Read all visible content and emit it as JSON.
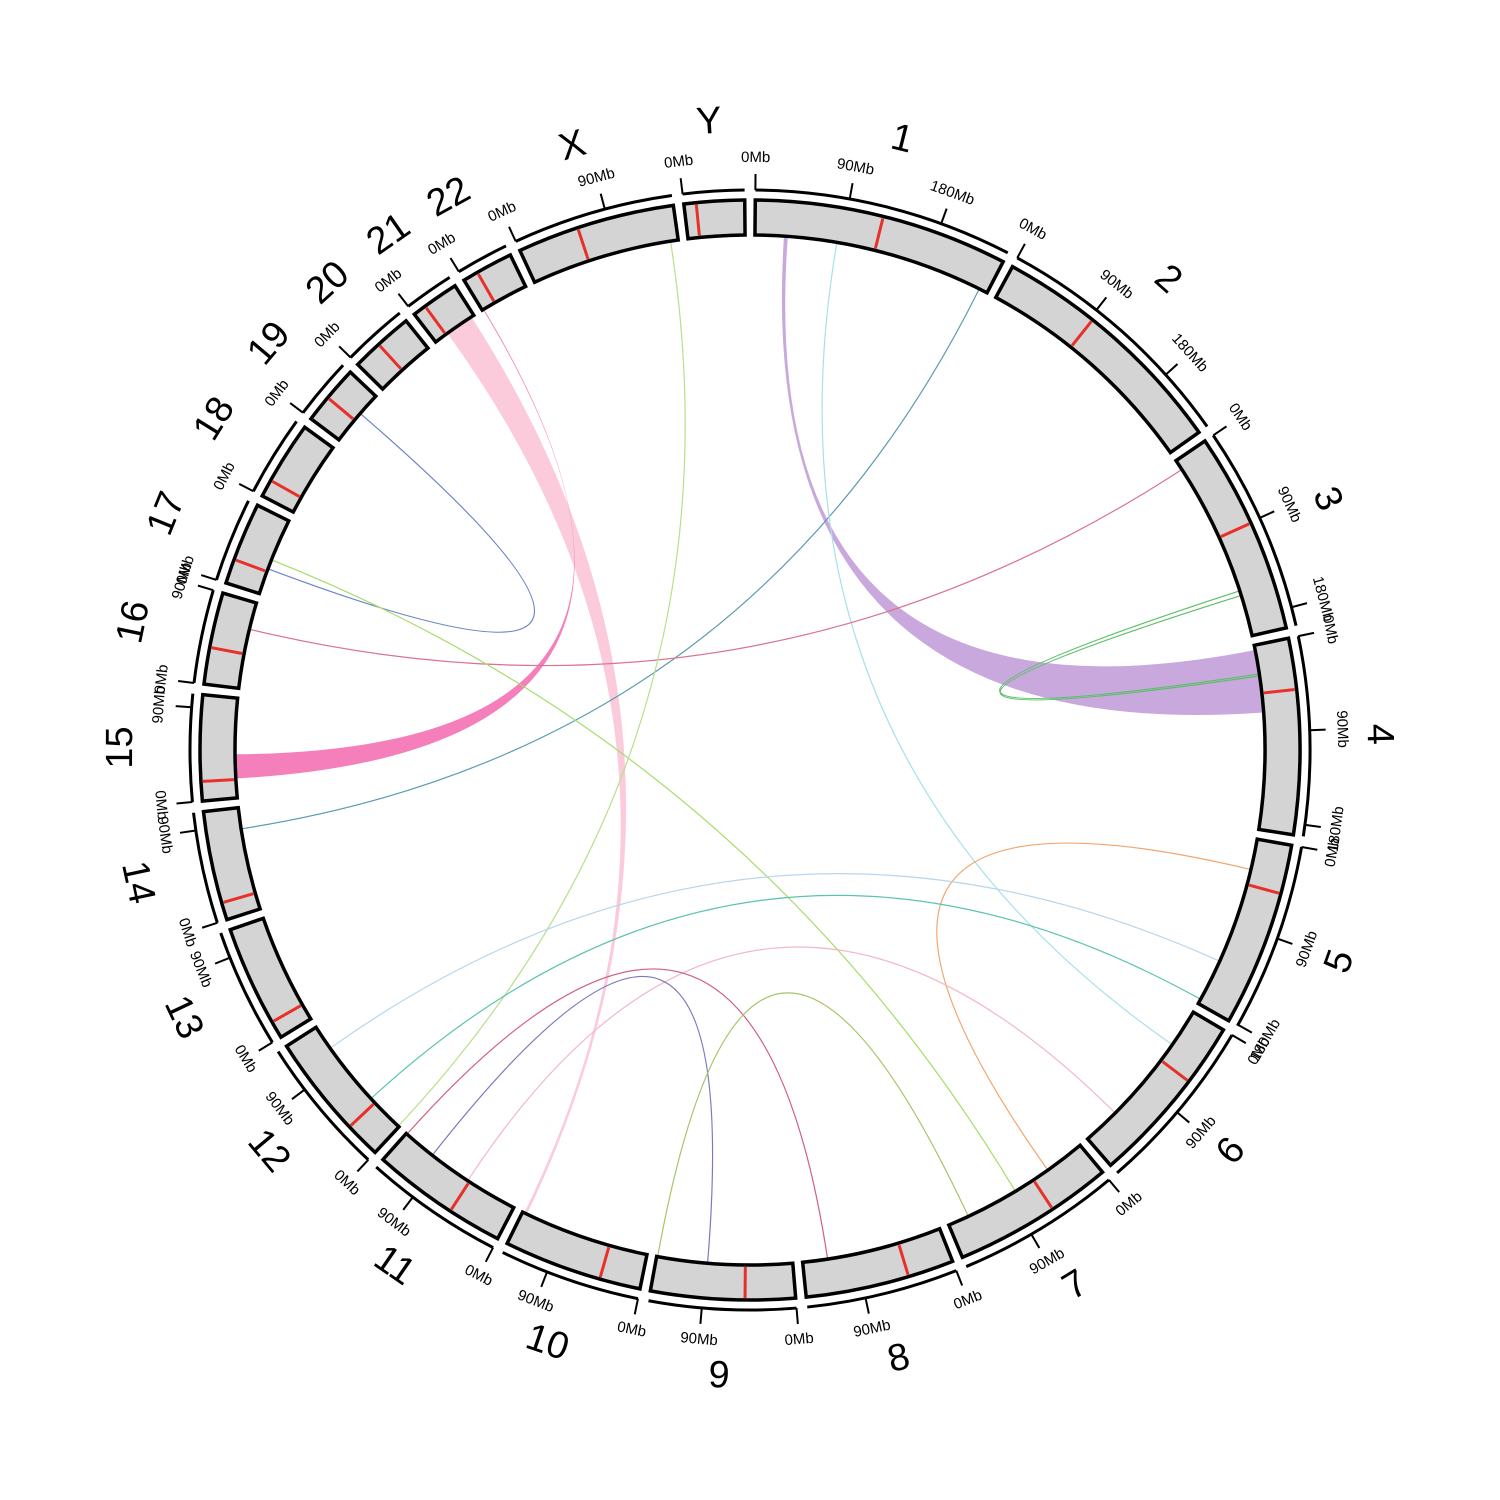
{
  "chart_data": {
    "type": "circos",
    "chromosomes": [
      {
        "name": "1",
        "length": 249,
        "centromere": 125,
        "ticks": [
          {
            "value": 0,
            "label": "0Mb"
          },
          {
            "value": 90,
            "label": "90Mb"
          },
          {
            "value": 180,
            "label": "180Mb"
          }
        ]
      },
      {
        "name": "2",
        "length": 243,
        "centromere": 93,
        "ticks": [
          {
            "value": 0,
            "label": "0Mb"
          },
          {
            "value": 90,
            "label": "90Mb"
          },
          {
            "value": 180,
            "label": "180Mb"
          }
        ]
      },
      {
        "name": "3",
        "length": 198,
        "centromere": 91,
        "ticks": [
          {
            "value": 0,
            "label": "0Mb"
          },
          {
            "value": 90,
            "label": "90Mb"
          },
          {
            "value": 180,
            "label": "180Mb"
          }
        ]
      },
      {
        "name": "4",
        "length": 191,
        "centromere": 50,
        "ticks": [
          {
            "value": 0,
            "label": "0Mb"
          },
          {
            "value": 90,
            "label": "90Mb"
          },
          {
            "value": 180,
            "label": "180Mb"
          }
        ]
      },
      {
        "name": "5",
        "length": 181,
        "centromere": 48,
        "ticks": [
          {
            "value": 0,
            "label": "0Mb"
          },
          {
            "value": 90,
            "label": "90Mb"
          },
          {
            "value": 180,
            "label": "180Mb"
          }
        ]
      },
      {
        "name": "6",
        "length": 171,
        "centromere": 60,
        "ticks": [
          {
            "value": 0,
            "label": "0Mb"
          },
          {
            "value": 90,
            "label": "90Mb"
          }
        ]
      },
      {
        "name": "7",
        "length": 159,
        "centromere": 60,
        "ticks": [
          {
            "value": 0,
            "label": "0Mb"
          },
          {
            "value": 90,
            "label": "90Mb"
          }
        ]
      },
      {
        "name": "8",
        "length": 146,
        "centromere": 45,
        "ticks": [
          {
            "value": 0,
            "label": "0Mb"
          },
          {
            "value": 90,
            "label": "90Mb"
          }
        ]
      },
      {
        "name": "9",
        "length": 141,
        "centromere": 49,
        "ticks": [
          {
            "value": 0,
            "label": "0Mb"
          },
          {
            "value": 90,
            "label": "90Mb"
          }
        ]
      },
      {
        "name": "10",
        "length": 136,
        "centromere": 40,
        "ticks": [
          {
            "value": 0,
            "label": "0Mb"
          },
          {
            "value": 90,
            "label": "90Mb"
          }
        ]
      },
      {
        "name": "11",
        "length": 135,
        "centromere": 53,
        "ticks": [
          {
            "value": 0,
            "label": "0Mb"
          },
          {
            "value": 90,
            "label": "90Mb"
          }
        ]
      },
      {
        "name": "12",
        "length": 134,
        "centromere": 35,
        "ticks": [
          {
            "value": 0,
            "label": "0Mb"
          },
          {
            "value": 90,
            "label": "90Mb"
          }
        ]
      },
      {
        "name": "13",
        "length": 115,
        "centromere": 17,
        "ticks": [
          {
            "value": 0,
            "label": "0Mb"
          },
          {
            "value": 90,
            "label": "90Mb"
          }
        ]
      },
      {
        "name": "14",
        "length": 107,
        "centromere": 17,
        "ticks": [
          {
            "value": 0,
            "label": "0Mb"
          },
          {
            "value": 90,
            "label": "90Mb"
          }
        ]
      },
      {
        "name": "15",
        "length": 103,
        "centromere": 19,
        "ticks": [
          {
            "value": 0,
            "label": "0Mb"
          },
          {
            "value": 90,
            "label": "90Mb"
          }
        ]
      },
      {
        "name": "16",
        "length": 90,
        "centromere": 36,
        "ticks": [
          {
            "value": 0,
            "label": "0Mb"
          },
          {
            "value": 90,
            "label": "90Mb"
          }
        ]
      },
      {
        "name": "17",
        "length": 81,
        "centromere": 24,
        "ticks": [
          {
            "value": 0,
            "label": "0Mb"
          }
        ]
      },
      {
        "name": "18",
        "length": 78,
        "centromere": 17,
        "ticks": [
          {
            "value": 0,
            "label": "0Mb"
          }
        ]
      },
      {
        "name": "19",
        "length": 59,
        "centromere": 26,
        "ticks": [
          {
            "value": 0,
            "label": "0Mb"
          }
        ]
      },
      {
        "name": "20",
        "length": 63,
        "centromere": 28,
        "ticks": [
          {
            "value": 0,
            "label": "0Mb"
          }
        ]
      },
      {
        "name": "21",
        "length": 48,
        "centromere": 13,
        "ticks": [
          {
            "value": 0,
            "label": "0Mb"
          }
        ]
      },
      {
        "name": "22",
        "length": 51,
        "centromere": 15,
        "ticks": [
          {
            "value": 0,
            "label": "0Mb"
          }
        ]
      },
      {
        "name": "X",
        "length": 155,
        "centromere": 60,
        "ticks": [
          {
            "value": 0,
            "label": "0Mb"
          },
          {
            "value": 90,
            "label": "90Mb"
          }
        ]
      },
      {
        "name": "Y",
        "length": 59,
        "centromere": 12,
        "ticks": [
          {
            "value": 0,
            "label": "0Mb"
          }
        ]
      }
    ],
    "links": [
      {
        "from": {
          "chromosome": "1",
          "start": 30,
          "end": 34
        },
        "to": {
          "chromosome": "4",
          "start": 5,
          "end": 70
        },
        "color": "#c9a8dd"
      },
      {
        "from": {
          "chromosome": "21",
          "start": 15,
          "end": 45
        },
        "to": {
          "chromosome": "10",
          "start": 131,
          "end": 134
        },
        "color": "#fbcadb"
      },
      {
        "from": {
          "chromosome": "15",
          "start": 20,
          "end": 45
        },
        "to": {
          "chromosome": "22",
          "start": 1,
          "end": 2
        },
        "color": "#f47fba"
      },
      {
        "from": {
          "chromosome": "1",
          "position": 240
        },
        "to": {
          "chromosome": "14",
          "position": 85
        },
        "color": "#5a9bb0"
      },
      {
        "from": {
          "chromosome": "1",
          "position": 85
        },
        "to": {
          "chromosome": "6",
          "position": 40
        },
        "color": "#a8e0ea"
      },
      {
        "from": {
          "chromosome": "3",
          "position": 11
        },
        "to": {
          "chromosome": "16",
          "position": 62
        },
        "color": "#d9738e"
      },
      {
        "from": {
          "chromosome": "3",
          "position": 150
        },
        "to": {
          "chromosome": "4",
          "position": 30
        },
        "color": "#5cbf6a"
      },
      {
        "from": {
          "chromosome": "3",
          "position": 155
        },
        "to": {
          "chromosome": "4",
          "position": 32
        },
        "color": "#5cbf6a"
      },
      {
        "from": {
          "chromosome": "19",
          "position": 35
        },
        "to": {
          "chromosome": "17",
          "position": 27
        },
        "color": "#6b86c4"
      },
      {
        "from": {
          "chromosome": "17",
          "position": 37
        },
        "to": {
          "chromosome": "7",
          "position": 82
        },
        "color": "#a6dc6a"
      },
      {
        "from": {
          "chromosome": "X",
          "position": 147
        },
        "to": {
          "chromosome": "12",
          "position": 1
        },
        "color": "#b8e08a"
      },
      {
        "from": {
          "chromosome": "5",
          "position": 32
        },
        "to": {
          "chromosome": "7",
          "position": 42
        },
        "color": "#f2a66e"
      },
      {
        "from": {
          "chromosome": "12",
          "position": 108
        },
        "to": {
          "chromosome": "5",
          "position": 132
        },
        "color": "#b7d6ee"
      },
      {
        "from": {
          "chromosome": "12",
          "position": 41
        },
        "to": {
          "chromosome": "5",
          "position": 176
        },
        "color": "#5cc2b0"
      },
      {
        "from": {
          "chromosome": "11",
          "position": 55
        },
        "to": {
          "chromosome": "6",
          "position": 132
        },
        "color": "#f2b8c8"
      },
      {
        "from": {
          "chromosome": "11",
          "position": 134
        },
        "to": {
          "chromosome": "8",
          "position": 120
        },
        "color": "#d0607e"
      },
      {
        "from": {
          "chromosome": "11",
          "position": 100
        },
        "to": {
          "chromosome": "9",
          "position": 88
        },
        "color": "#7d79bf"
      },
      {
        "from": {
          "chromosome": "9",
          "position": 140
        },
        "to": {
          "chromosome": "7",
          "position": 137
        },
        "color": "#a8c468"
      }
    ]
  }
}
